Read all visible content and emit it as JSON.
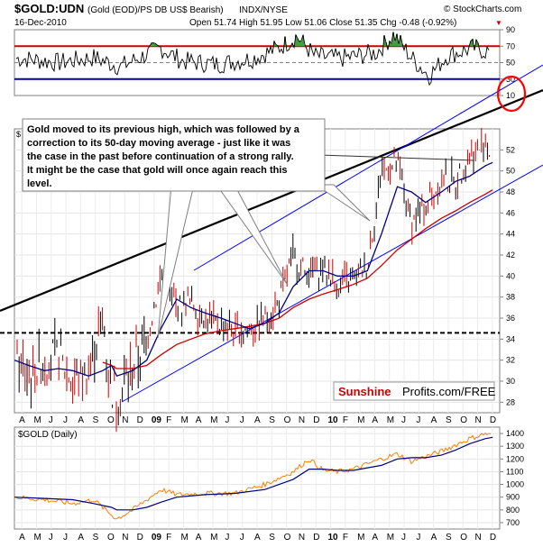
{
  "header": {
    "symbol": "$GOLD:UDN",
    "description": "(Gold (EOD)/PS DB US$ Bearish)",
    "exchange": "INDX/NYSE",
    "watermark": "© StockCharts.com",
    "date": "16-Dec-2010",
    "quote": "Open 51.74  High 51.95  Low 51.06  Close 51.35  Chg -0.48 (-0.92%)",
    "chg_arrow": "▼"
  },
  "annotation": {
    "lines": [
      "Gold moved to its previous high, which was followed by a",
      "correction to its 50-day moving average - just like it was",
      "the case in the past before continuation of a strong rally.",
      "It might be the case that gold will once again reach this",
      "level."
    ]
  },
  "branding": {
    "sunshine": "Sunshine",
    "profits": "Profits.com/FREE"
  },
  "lower_panel": {
    "label": "$GOLD (Daily)"
  },
  "main_panel": {
    "dollar_sign": "$"
  },
  "colors": {
    "price_up": "#000000",
    "price_down": "#cc0000",
    "ma50": "#000080",
    "ma200": "#cc0000",
    "trend": "#0000ff",
    "gold_line": "#ff8000",
    "circle": "#ff0000",
    "rsi_fill": "#40a040"
  },
  "chart_data": [
    {
      "type": "line",
      "panel": "rsi",
      "y_ticks": [
        90,
        70,
        50,
        30,
        10
      ],
      "ylim": [
        10,
        90
      ],
      "overbought": 70,
      "oversold": 30,
      "center": 50,
      "rsi_x": [
        2008.3,
        2008.5,
        2008.7,
        2008.85,
        2009.0,
        2009.08,
        2009.2,
        2009.4,
        2009.6,
        2009.75,
        2009.85,
        2009.95,
        2010.1,
        2010.3,
        2010.4,
        2010.5,
        2010.6,
        2010.7,
        2010.85,
        2010.96
      ],
      "rsi_y": [
        55,
        50,
        56,
        45,
        60,
        68,
        52,
        48,
        55,
        68,
        82,
        58,
        55,
        62,
        84,
        56,
        34,
        58,
        68,
        62
      ]
    },
    {
      "type": "line",
      "panel": "price",
      "y_ticks": [
        28,
        30,
        32,
        34,
        36,
        38,
        40,
        42,
        44,
        46,
        48,
        50,
        52
      ],
      "ylim": [
        27,
        54
      ],
      "x_ticks": [
        "A",
        "M",
        "J",
        "J",
        "A",
        "S",
        "O",
        "N",
        "D",
        "09",
        "F",
        "M",
        "A",
        "M",
        "J",
        "J",
        "A",
        "S",
        "O",
        "N",
        "D",
        "10",
        "F",
        "M",
        "A",
        "M",
        "J",
        "J",
        "A",
        "S",
        "O",
        "N",
        "D"
      ],
      "x_range": [
        "Apr 2008",
        "Dec 2010"
      ],
      "price_x": [
        2008.25,
        2008.33,
        2008.42,
        2008.5,
        2008.58,
        2008.67,
        2008.75,
        2008.8,
        2008.83,
        2008.92,
        2009.0,
        2009.08,
        2009.17,
        2009.25,
        2009.33,
        2009.42,
        2009.5,
        2009.58,
        2009.67,
        2009.75,
        2009.83,
        2009.92,
        2010.0,
        2010.08,
        2010.17,
        2010.25,
        2010.33,
        2010.42,
        2010.5,
        2010.58,
        2010.67,
        2010.75,
        2010.83,
        2010.92,
        2010.96
      ],
      "price_y": [
        32,
        30.5,
        32,
        32.5,
        30,
        31,
        36,
        29,
        28.5,
        31,
        34,
        40,
        37,
        37.5,
        36,
        35.5,
        34.5,
        35,
        36,
        37.5,
        42,
        40,
        41,
        39,
        39.5,
        41,
        50,
        50.5,
        45,
        47,
        49,
        49,
        51.5,
        52.5,
        51.3
      ],
      "ma50_y": [
        32,
        31.5,
        31,
        31.2,
        31,
        30.5,
        31,
        31.5,
        30.5,
        31,
        32,
        35,
        37.8,
        37,
        36.5,
        36,
        35.5,
        35,
        35.5,
        36.5,
        39,
        40.5,
        40.5,
        40,
        40,
        40.5,
        44,
        48.5,
        48,
        47,
        48,
        49,
        49.5,
        50.5,
        50.8
      ],
      "ma200_y": [
        null,
        null,
        null,
        null,
        null,
        null,
        31.8,
        31.5,
        31.2,
        31.2,
        31.5,
        32.5,
        33.5,
        34,
        34.5,
        34.8,
        35,
        35.2,
        35.5,
        36,
        37,
        37.8,
        38.3,
        38.7,
        39.2,
        39.8,
        41,
        42.5,
        43.5,
        44.5,
        45.5,
        46.2,
        47,
        47.8,
        48.2
      ],
      "support_level": 34.6
    },
    {
      "type": "line",
      "panel": "gold",
      "y_ticks": [
        700,
        800,
        900,
        1000,
        1100,
        1200,
        1300,
        1400
      ],
      "ylim": [
        650,
        1450
      ],
      "gold_x": [
        2008.25,
        2008.42,
        2008.58,
        2008.7,
        2008.8,
        2008.83,
        2008.92,
        2009.0,
        2009.08,
        2009.17,
        2009.33,
        2009.5,
        2009.67,
        2009.83,
        2009.92,
        2010.0,
        2010.08,
        2010.17,
        2010.33,
        2010.42,
        2010.5,
        2010.58,
        2010.67,
        2010.75,
        2010.83,
        2010.92,
        2010.96
      ],
      "gold_y": [
        900,
        880,
        850,
        880,
        760,
        730,
        800,
        880,
        960,
        920,
        930,
        930,
        1000,
        1100,
        1200,
        1110,
        1100,
        1120,
        1200,
        1240,
        1180,
        1220,
        1260,
        1310,
        1360,
        1400,
        1380
      ],
      "ma_y": [
        900,
        890,
        880,
        850,
        820,
        800,
        800,
        820,
        860,
        900,
        920,
        930,
        960,
        1040,
        1120,
        1120,
        1110,
        1110,
        1150,
        1200,
        1210,
        1210,
        1230,
        1270,
        1320,
        1360,
        1370
      ]
    }
  ]
}
